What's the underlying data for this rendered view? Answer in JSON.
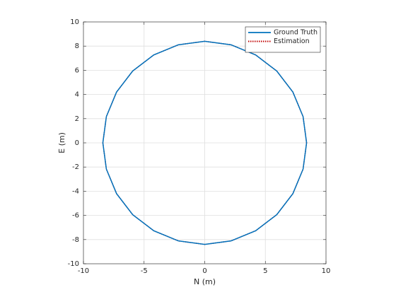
{
  "chart_data": {
    "type": "line",
    "xlabel": "N (m)",
    "ylabel": "E (m)",
    "xlim": [
      -10,
      10
    ],
    "ylim": [
      -10,
      10
    ],
    "xticks": [
      -10,
      -5,
      0,
      5,
      10
    ],
    "yticks": [
      -10,
      -8,
      -6,
      -4,
      -2,
      0,
      2,
      4,
      6,
      8,
      10
    ],
    "grid": true,
    "legend": "northeast",
    "series": [
      {
        "name": "Ground Truth",
        "color": "#0072bd",
        "style": "solid",
        "x": [
          8.4,
          8.11,
          7.27,
          5.94,
          4.2,
          2.17,
          0,
          -2.17,
          -4.2,
          -5.94,
          -7.27,
          -8.11,
          -8.4,
          -8.11,
          -7.27,
          -5.94,
          -4.2,
          -2.17,
          0,
          2.17,
          4.2,
          5.94,
          7.27,
          8.11,
          8.4
        ],
        "values": [
          0,
          2.17,
          4.2,
          5.94,
          7.27,
          8.11,
          8.4,
          8.11,
          7.27,
          5.94,
          4.2,
          2.17,
          0,
          -2.17,
          -4.2,
          -5.94,
          -7.27,
          -8.11,
          -8.4,
          -8.11,
          -7.27,
          -5.94,
          -4.2,
          -2.17,
          0
        ]
      },
      {
        "name": "Estimation",
        "color": "#c00000",
        "style": "dotted",
        "x": [
          8.4,
          8.11,
          7.27,
          5.94,
          4.2,
          2.17,
          0,
          -2.17,
          -4.2,
          -5.94,
          -7.27,
          -8.11,
          -8.4,
          -8.11,
          -7.27,
          -5.94,
          -4.2,
          -2.17,
          0,
          2.17,
          4.2,
          5.94,
          7.27,
          8.11,
          8.4
        ],
        "values": [
          0,
          2.17,
          4.2,
          5.94,
          7.27,
          8.11,
          8.4,
          8.11,
          7.27,
          5.94,
          4.2,
          2.17,
          0,
          -2.17,
          -4.2,
          -5.94,
          -7.27,
          -8.11,
          -8.4,
          -8.11,
          -7.27,
          -5.94,
          -4.2,
          -2.17,
          0
        ]
      }
    ]
  }
}
